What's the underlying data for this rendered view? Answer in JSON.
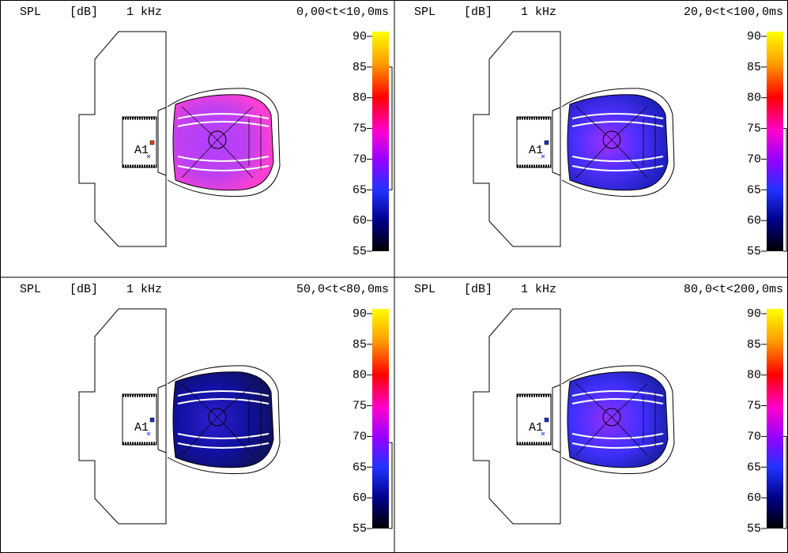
{
  "scale_ticks": [
    90,
    85,
    80,
    75,
    70,
    65,
    60,
    55
  ],
  "panels": [
    {
      "quantity": "SPL",
      "unit": "[dB]",
      "frequency": "1 kHz",
      "time_window": "0,00<t<10,0ms",
      "marker": "A1",
      "level_range": [
        65,
        85
      ]
    },
    {
      "quantity": "SPL",
      "unit": "[dB]",
      "frequency": "1 kHz",
      "time_window": "20,0<t<100,0ms",
      "marker": "A1",
      "level_range": [
        55,
        75
      ]
    },
    {
      "quantity": "SPL",
      "unit": "[dB]",
      "frequency": "1 kHz",
      "time_window": "50,0<t<80,0ms",
      "marker": "A1",
      "level_range": [
        55,
        69
      ]
    },
    {
      "quantity": "SPL",
      "unit": "[dB]",
      "frequency": "1 kHz",
      "time_window": "80,0<t<200,0ms",
      "marker": "A1",
      "level_range": [
        55,
        70
      ]
    }
  ]
}
